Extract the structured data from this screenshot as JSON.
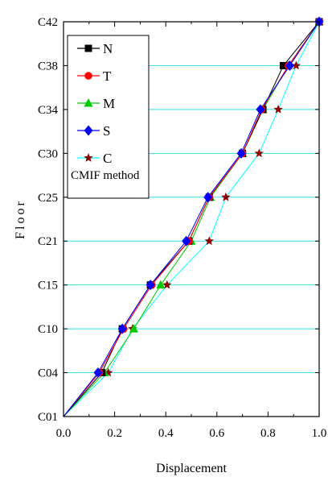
{
  "chart_data": {
    "type": "line",
    "xlabel": "Displacement",
    "ylabel": "Floor",
    "xlim": [
      0.0,
      1.0
    ],
    "x_ticks": [
      "0.0",
      "0.2",
      "0.4",
      "0.6",
      "0.8",
      "1.0"
    ],
    "y_categories": [
      "C01",
      "C04",
      "C10",
      "C15",
      "C21",
      "C25",
      "C30",
      "C34",
      "C38",
      "C42"
    ],
    "grid": "horizontal cyan lines at every floor",
    "legend_placement": "top-left",
    "legend_note": "CMIF method",
    "series": [
      {
        "name": "N",
        "color": "#000000",
        "marker": "square",
        "values": [
          0.0,
          0.15,
          0.23,
          0.34,
          0.49,
          0.57,
          0.7,
          0.78,
          0.86,
          1.0
        ]
      },
      {
        "name": "T",
        "color": "#ff0000",
        "marker": "circle",
        "values": [
          0.0,
          0.14,
          0.235,
          0.345,
          0.49,
          0.57,
          0.7,
          0.775,
          0.88,
          1.0
        ]
      },
      {
        "name": "M",
        "color": "#00cc00",
        "marker": "triangle",
        "values": [
          0.0,
          0.16,
          0.275,
          0.38,
          0.5,
          0.575,
          0.7,
          0.78,
          0.88,
          1.0
        ]
      },
      {
        "name": "S",
        "color": "#0000ff",
        "marker": "diamond",
        "values": [
          0.0,
          0.135,
          0.23,
          0.34,
          0.48,
          0.565,
          0.695,
          0.77,
          0.885,
          1.0
        ]
      },
      {
        "name": "C",
        "color": "#00ffff",
        "marker_color": "#8b0000",
        "marker": "star",
        "values": [
          0.0,
          0.175,
          0.27,
          0.405,
          0.57,
          0.635,
          0.765,
          0.84,
          0.91,
          1.0
        ]
      }
    ]
  }
}
